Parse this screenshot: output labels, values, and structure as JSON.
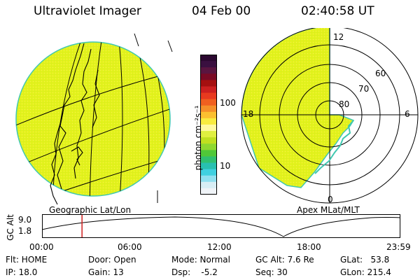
{
  "header": {
    "instrument": "Ultraviolet Imager",
    "date": "04 Feb 00",
    "time": "02:40:58 UT"
  },
  "geo_panel": {
    "label": "Geographic Lat/Lon"
  },
  "polar_panel": {
    "label": "Apex MLat/MLT",
    "mlt_labels": {
      "top": "12",
      "left": "18",
      "right": "6",
      "bottom": "0"
    },
    "lat_labels": [
      "60",
      "70",
      "80"
    ]
  },
  "colorbar": {
    "unit": "photon cm⁻²s⁻¹",
    "ticks": [
      "100",
      "10"
    ],
    "scale": "log",
    "colors": [
      "#2b0830",
      "#3a1040",
      "#5a1540",
      "#7a0a25",
      "#a51010",
      "#cc2020",
      "#e83a1f",
      "#f06020",
      "#f5902a",
      "#fbc030",
      "#f8ec40",
      "#fff9a0",
      "#e0f040",
      "#c0e020",
      "#8ed830",
      "#50c838",
      "#30c070",
      "#28c0b0",
      "#40d0e0",
      "#90e0f0",
      "#d8eef5",
      "#f0f4f8"
    ]
  },
  "altitude_plot": {
    "y_label": "GC Alt",
    "y_ticks": [
      "9.0",
      "1.8"
    ],
    "x_ticks": [
      "00:00",
      "06:00",
      "12:00",
      "18:00",
      "23:59"
    ],
    "marker_time_hours": 2.68,
    "marker_color": "#d02020"
  },
  "status": {
    "flt": "Flt: HOME",
    "ip": "IP: 18.0",
    "door": "Door: Open",
    "gain": "Gain: 13",
    "mode": "Mode: Normal",
    "dsp": "Dsp:    -5.2",
    "gc_alt": "GC Alt: 7.6 Re",
    "seq": "Seq: 30",
    "glat": "GLat:   53.8",
    "glon": "GLon: 215.4"
  },
  "colors": {
    "emission": "#e4f21a",
    "emission_edge": "#40c8b0"
  }
}
